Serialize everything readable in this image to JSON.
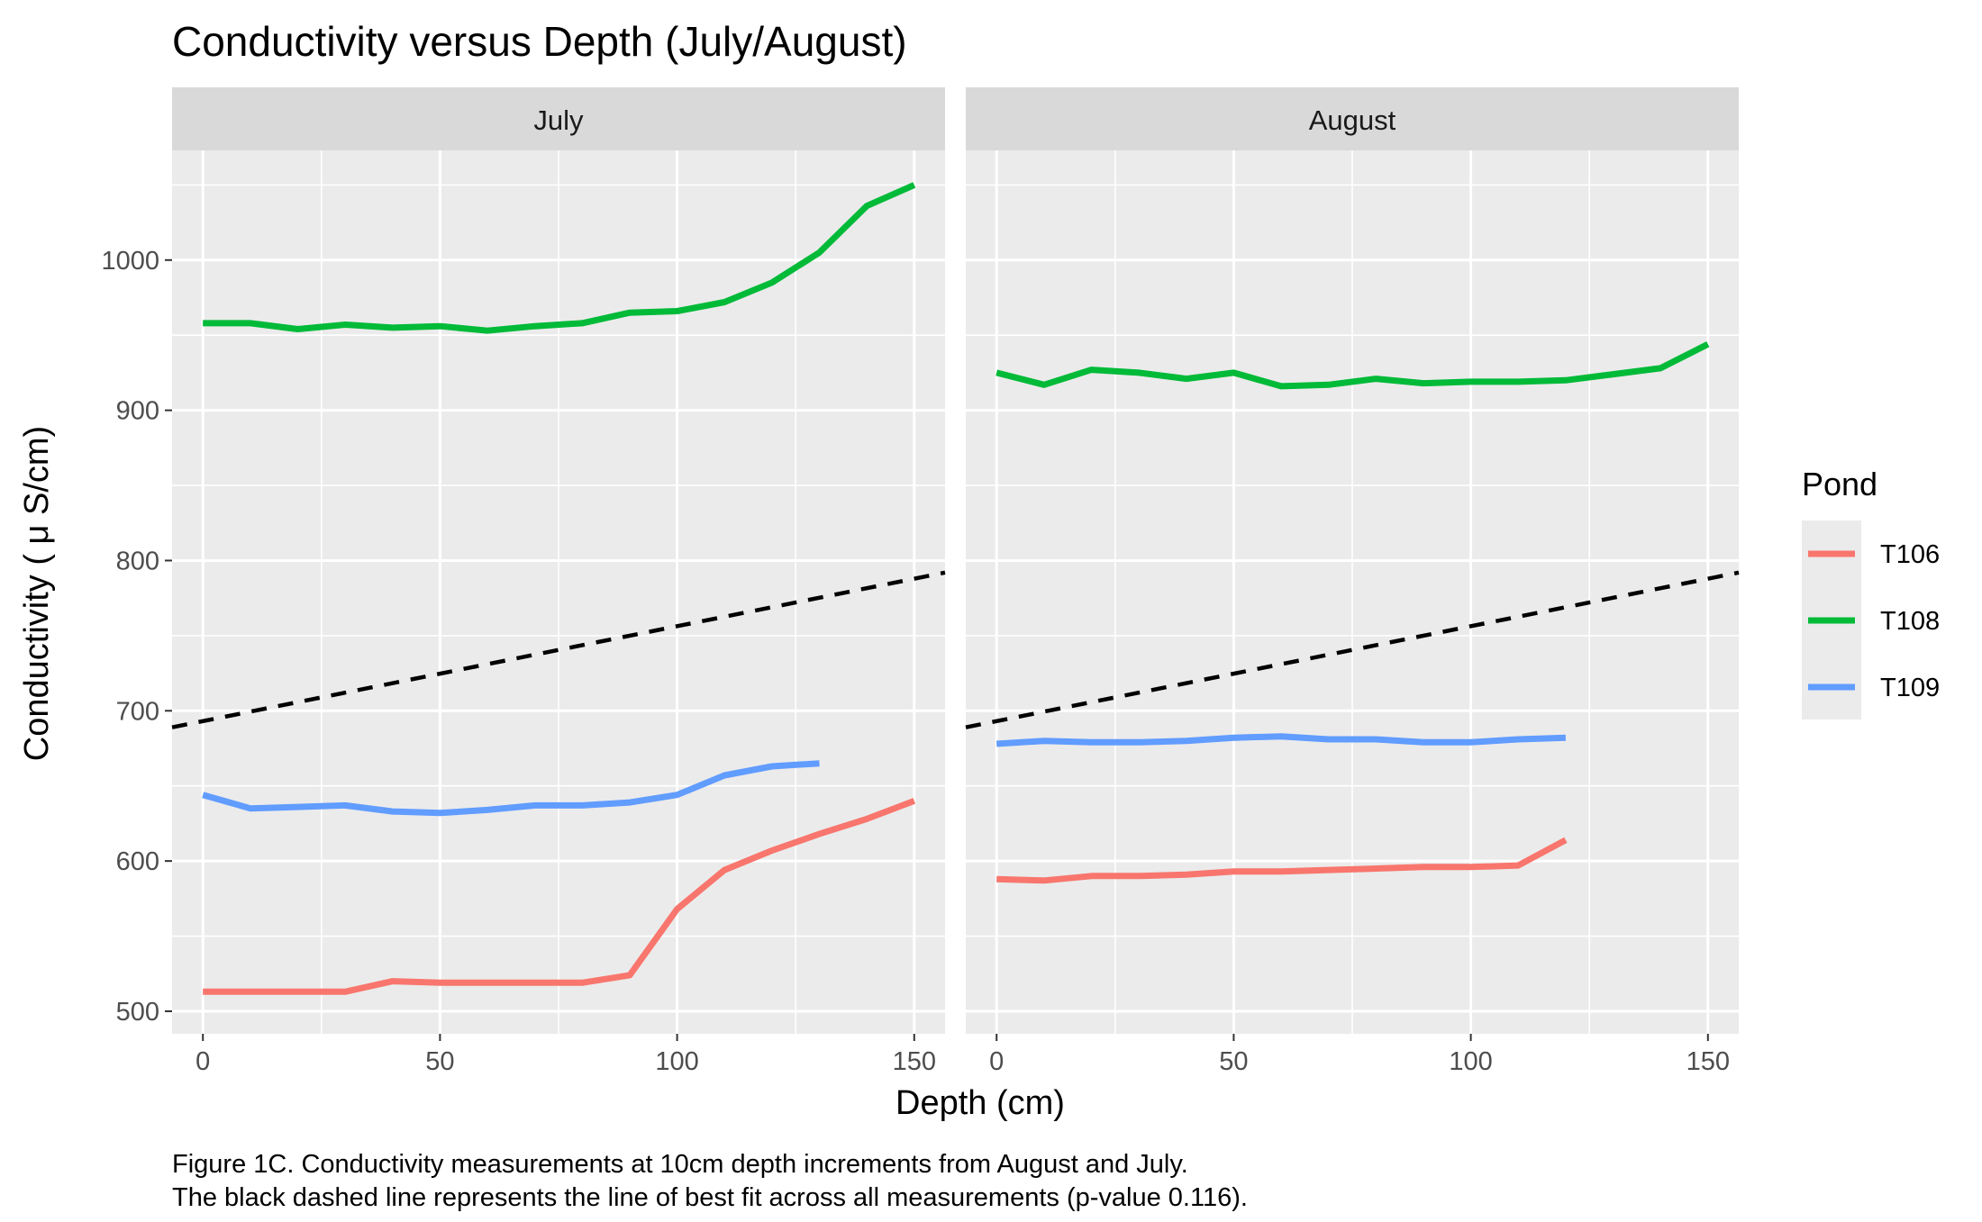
{
  "chart_data": {
    "type": "line",
    "title": "Conductivity versus Depth (July/August)",
    "xlabel": "Depth (cm)",
    "ylabel": "Conductivity ( μ S/cm)",
    "xlim": [
      -6.5,
      156.5
    ],
    "ylim": [
      485,
      1073
    ],
    "x_ticks": [
      0,
      50,
      100,
      150
    ],
    "y_ticks": [
      500,
      600,
      700,
      800,
      900,
      1000
    ],
    "grid": true,
    "legend": {
      "title": "Pond",
      "position": "right"
    },
    "trend_line": {
      "style": "dashed",
      "color": "#000000",
      "x": [
        -6.5,
        156.5
      ],
      "y": [
        689,
        792
      ]
    },
    "caption": [
      "Figure 1C. Conductivity measurements at 10cm depth increments from August and July.",
      "The black dashed line represents the line of best fit across all measurements (p-value 0.116)."
    ],
    "panels": [
      {
        "name": "July",
        "series": [
          {
            "name": "T106",
            "color": "#F8766D",
            "x": [
              0,
              10,
              20,
              30,
              40,
              50,
              60,
              70,
              80,
              90,
              100,
              110,
              120,
              130,
              140,
              150
            ],
            "y": [
              513,
              513,
              513,
              513,
              520,
              519,
              519,
              519,
              519,
              524,
              568,
              594,
              607,
              618,
              628,
              640
            ]
          },
          {
            "name": "T108",
            "color": "#00BA38",
            "x": [
              0,
              10,
              20,
              30,
              40,
              50,
              60,
              70,
              80,
              90,
              100,
              110,
              120,
              130,
              140,
              150
            ],
            "y": [
              958,
              958,
              954,
              957,
              955,
              956,
              953,
              956,
              958,
              965,
              966,
              972,
              985,
              1005,
              1036,
              1050
            ]
          },
          {
            "name": "T109",
            "color": "#619CFF",
            "x": [
              0,
              10,
              20,
              30,
              40,
              50,
              60,
              70,
              80,
              90,
              100,
              110,
              120,
              130
            ],
            "y": [
              644,
              635,
              636,
              637,
              633,
              632,
              634,
              637,
              637,
              639,
              644,
              657,
              663,
              665
            ]
          }
        ]
      },
      {
        "name": "August",
        "series": [
          {
            "name": "T106",
            "color": "#F8766D",
            "x": [
              0,
              10,
              20,
              30,
              40,
              50,
              60,
              70,
              80,
              90,
              100,
              110,
              120
            ],
            "y": [
              588,
              587,
              590,
              590,
              591,
              593,
              593,
              594,
              595,
              596,
              596,
              597,
              614
            ]
          },
          {
            "name": "T108",
            "color": "#00BA38",
            "x": [
              0,
              10,
              20,
              30,
              40,
              50,
              60,
              70,
              80,
              90,
              100,
              110,
              120,
              130,
              140,
              150
            ],
            "y": [
              925,
              917,
              927,
              925,
              921,
              925,
              916,
              917,
              921,
              918,
              919,
              919,
              920,
              924,
              928,
              944
            ]
          },
          {
            "name": "T109",
            "color": "#619CFF",
            "x": [
              0,
              10,
              20,
              30,
              40,
              50,
              60,
              70,
              80,
              90,
              100,
              110,
              120
            ],
            "y": [
              678,
              680,
              679,
              679,
              680,
              682,
              683,
              681,
              681,
              679,
              679,
              681,
              682
            ]
          }
        ]
      }
    ]
  }
}
